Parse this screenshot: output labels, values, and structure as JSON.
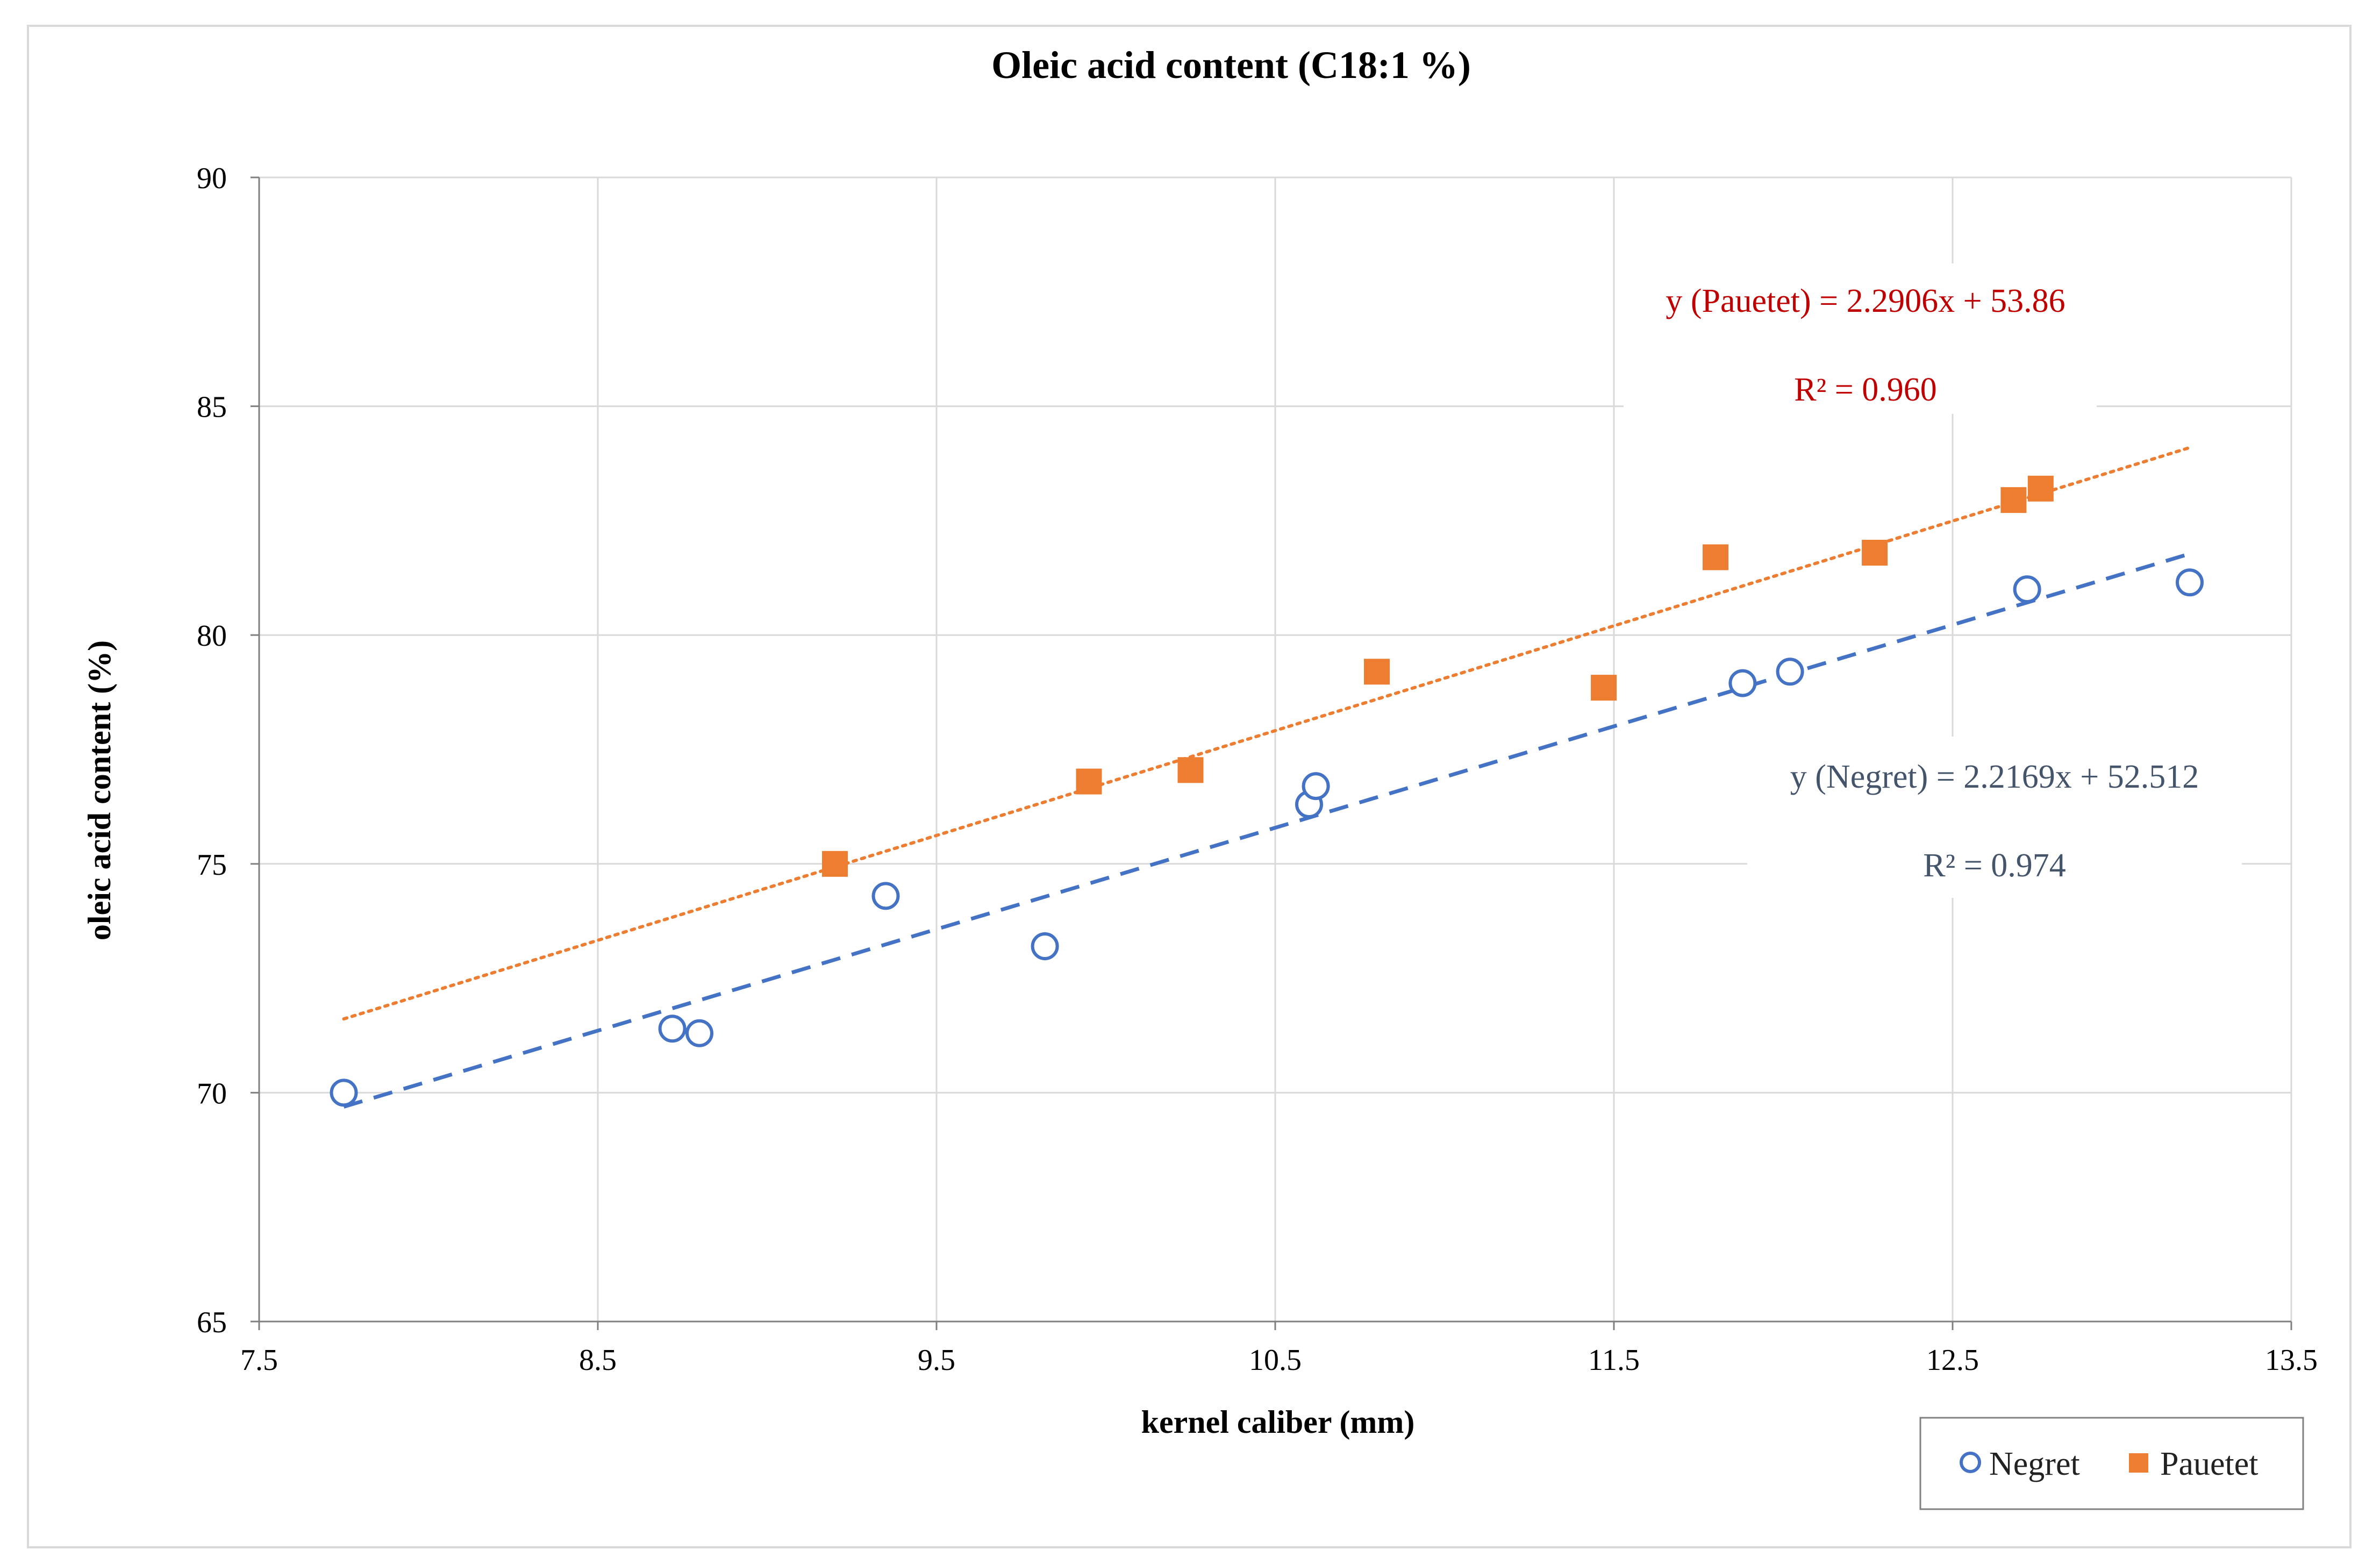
{
  "chart_data": {
    "type": "scatter",
    "title": "Oleic acid content (C18:1 %)",
    "xlabel": "kernel caliber (mm)",
    "ylabel": "oleic acid content (%)",
    "xlim": [
      7.5,
      13.5
    ],
    "ylim": [
      65,
      90
    ],
    "xticks": [
      "7.5",
      "8.5",
      "9.5",
      "10.5",
      "11.5",
      "12.5",
      "13.5"
    ],
    "yticks": [
      "65",
      "70",
      "75",
      "80",
      "85",
      "90"
    ],
    "grid": true,
    "legend_position": "bottom-right",
    "series": [
      {
        "name": "Negret",
        "marker": "circle-open",
        "color": "#4472C4",
        "x": [
          7.75,
          8.72,
          8.8,
          9.35,
          9.82,
          10.6,
          10.62,
          11.88,
          12.02,
          12.72,
          13.2
        ],
        "y": [
          70.0,
          71.4,
          71.3,
          74.3,
          73.2,
          76.3,
          76.7,
          78.95,
          79.2,
          81.0,
          81.15
        ],
        "trendline": {
          "slope": 2.2169,
          "intercept": 52.512,
          "x_range": [
            7.75,
            13.2
          ],
          "style": "dashed",
          "equation_label": "y (Negret)  = 2.2169x + 52.512",
          "r2_label": "R² = 0.974"
        }
      },
      {
        "name": "Pauetet",
        "marker": "square-filled",
        "color": "#ED7D31",
        "x": [
          9.2,
          9.95,
          10.25,
          10.8,
          11.47,
          11.8,
          12.27,
          12.68,
          12.76
        ],
        "y": [
          75.0,
          76.8,
          77.05,
          79.2,
          78.85,
          81.7,
          81.8,
          82.95,
          83.2
        ],
        "trendline": {
          "slope": 2.2906,
          "intercept": 53.86,
          "x_range": [
            7.75,
            13.2
          ],
          "style": "dotted",
          "equation_label": "y (Pauetet)  = 2.2906x + 53.86",
          "r2_label": "R² = 0.960"
        }
      }
    ]
  },
  "colors": {
    "negret": "#4472C4",
    "pauetet": "#ED7D31",
    "pauetet_label": "#C00000",
    "negret_label": "#44546A",
    "grid": "#D9D9D9",
    "axis": "#808080"
  }
}
